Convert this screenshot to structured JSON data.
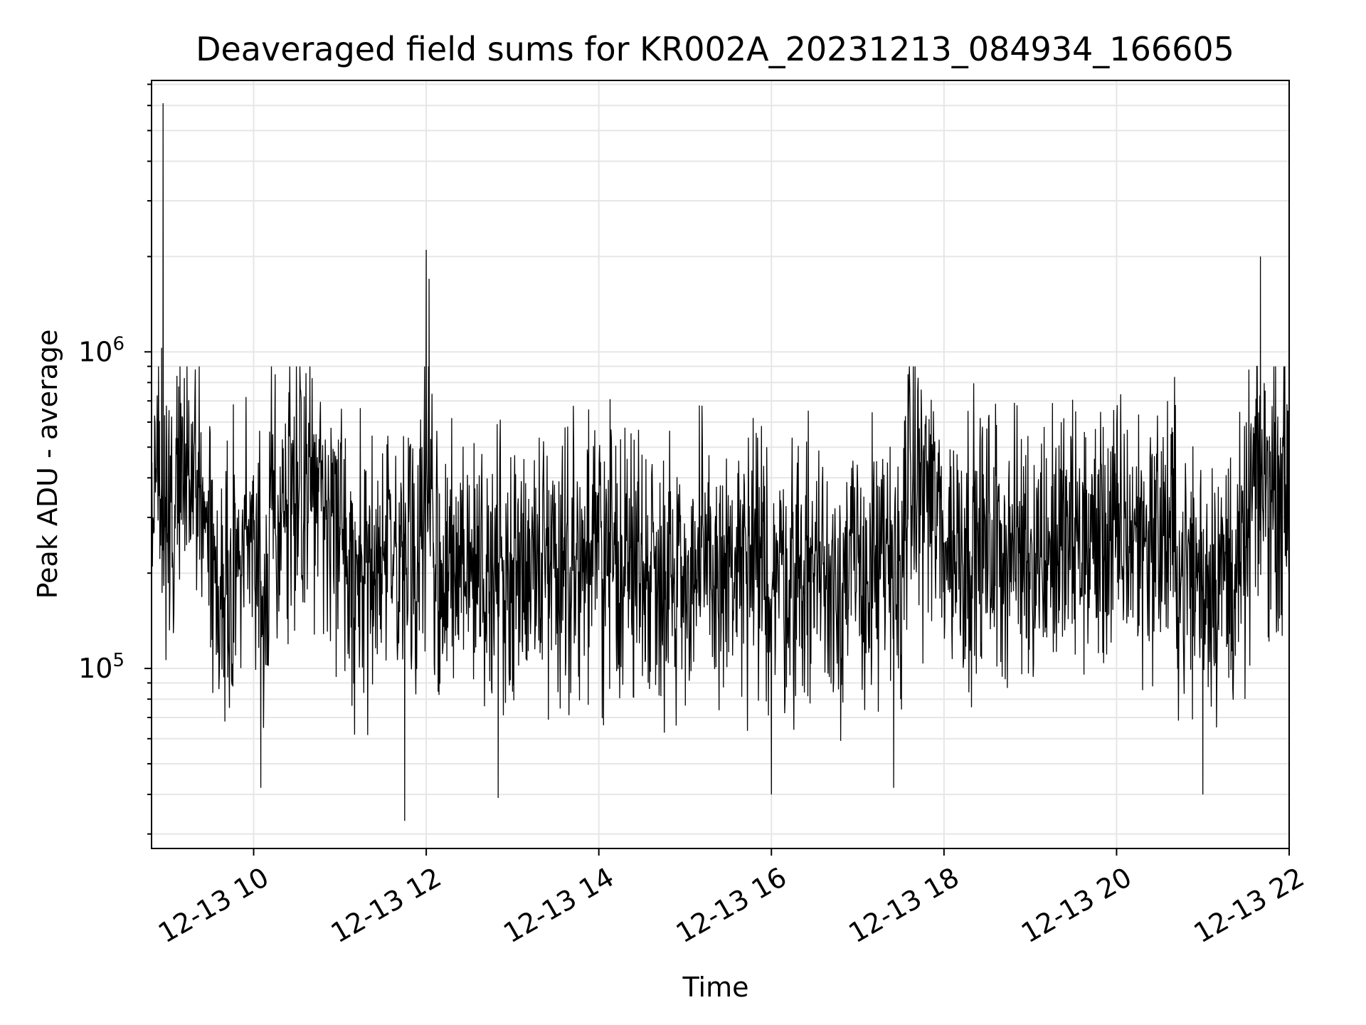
{
  "chart_data": {
    "type": "line",
    "title": "Deaveraged field sums for KR002A_20231213_084934_166605",
    "xlabel": "Time",
    "ylabel": "Peak ADU - average",
    "yscale": "log",
    "xlim": [
      "2023-12-13 08:49",
      "2023-12-13 22:00"
    ],
    "ylim": [
      27000,
      7200000
    ],
    "x_ticks": [
      "2023-12-13 10:00",
      "2023-12-13 12:00",
      "2023-12-13 14:00",
      "2023-12-13 16:00",
      "2023-12-13 18:00",
      "2023-12-13 20:00",
      "2023-12-13 22:00"
    ],
    "x_tick_labels": [
      "12-13 10",
      "12-13 12",
      "12-13 14",
      "12-13 16",
      "12-13 18",
      "12-13 20",
      "12-13 22"
    ],
    "y_ticks": [
      {
        "value": 100000,
        "base": "10",
        "exp": "5"
      },
      {
        "value": 1000000,
        "base": "10",
        "exp": "6"
      }
    ],
    "grid": true,
    "line_color": "#000000",
    "grid_color": "#e6e6e6",
    "series": [
      {
        "values": [
          [
            "2023-12-13 08:50",
            300000
          ],
          [
            "2023-12-13 08:56",
            1030000
          ],
          [
            "2023-12-13 08:57",
            6100000
          ],
          [
            "2023-12-13 08:58",
            280000
          ],
          [
            "2023-12-13 09:00",
            250000
          ],
          [
            "2023-12-13 09:15",
            600000
          ],
          [
            "2023-12-13 09:30",
            250000
          ],
          [
            "2023-12-13 09:40",
            68000
          ],
          [
            "2023-12-13 10:00",
            300000
          ],
          [
            "2023-12-13 10:05",
            42000
          ],
          [
            "2023-12-13 10:15",
            850000
          ],
          [
            "2023-12-13 11:00",
            280000
          ],
          [
            "2023-12-13 11:45",
            33000
          ],
          [
            "2023-12-13 12:00",
            2100000
          ],
          [
            "2023-12-13 12:02",
            1700000
          ],
          [
            "2023-12-13 12:05",
            250000
          ],
          [
            "2023-12-13 12:50",
            39000
          ],
          [
            "2023-12-13 13:00",
            220000
          ],
          [
            "2023-12-13 14:00",
            230000
          ],
          [
            "2023-12-13 15:00",
            200000
          ],
          [
            "2023-12-13 16:00",
            40000
          ],
          [
            "2023-12-13 16:30",
            230000
          ],
          [
            "2023-12-13 17:25",
            42000
          ],
          [
            "2023-12-13 17:35",
            850000
          ],
          [
            "2023-12-13 18:00",
            250000
          ],
          [
            "2023-12-13 19:00",
            240000
          ],
          [
            "2023-12-13 20:00",
            260000
          ],
          [
            "2023-12-13 20:40",
            270000
          ],
          [
            "2023-12-13 21:00",
            40000
          ],
          [
            "2023-12-13 21:30",
            240000
          ],
          [
            "2023-12-13 21:40",
            2000000
          ],
          [
            "2023-12-13 21:50",
            600000
          ],
          [
            "2023-12-13 22:00",
            480000
          ]
        ]
      }
    ]
  }
}
